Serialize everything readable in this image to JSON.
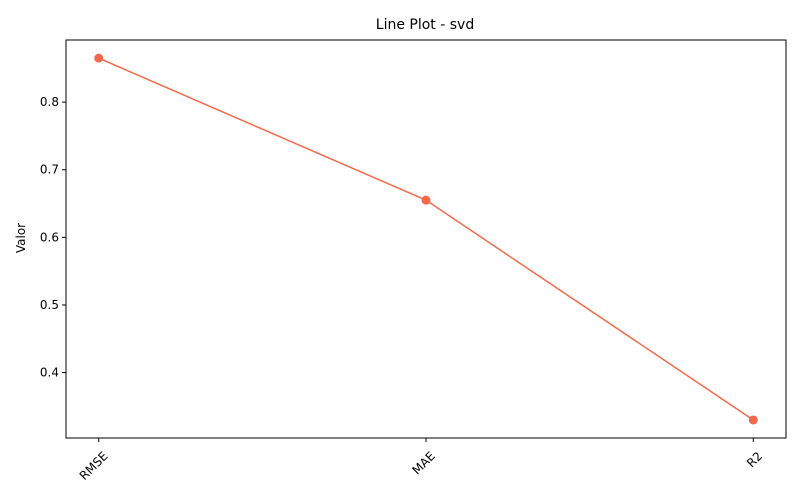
{
  "chart_data": {
    "type": "line",
    "title": "Line Plot - svd",
    "xlabel": "",
    "ylabel": "Valor",
    "categories": [
      "RMSE",
      "MAE",
      "R2"
    ],
    "series": [
      {
        "values": [
          0.865,
          0.655,
          0.33
        ],
        "color": "#f4694b",
        "marker": "circle"
      }
    ],
    "yticks": [
      "0.4",
      "0.5",
      "0.6",
      "0.7",
      "0.8"
    ],
    "ylim": [
      0.3033,
      0.8918
    ],
    "xtick_rotation": 45,
    "grid": false,
    "legend": "none"
  }
}
